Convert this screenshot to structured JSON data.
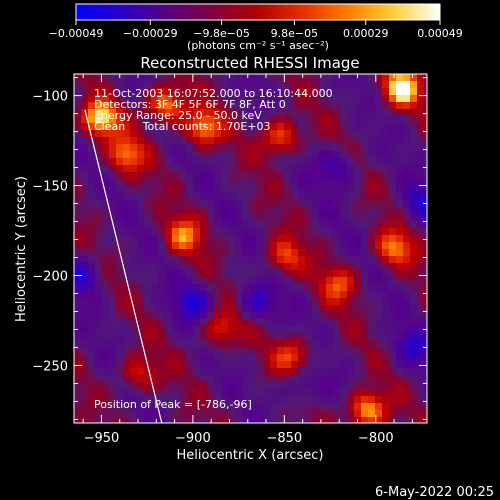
{
  "chart_data": {
    "type": "heatmap",
    "title": "Reconstructed RHESSI Image",
    "xlabel": "Heliocentric X (arcsec)",
    "ylabel": "Heliocentric Y (arcsec)",
    "xlim": [
      -965,
      -772
    ],
    "ylim": [
      -282,
      -88
    ],
    "xticks": [
      -950,
      -900,
      -850,
      -800
    ],
    "xtick_labels": [
      "−950",
      "−900",
      "−850",
      "−800"
    ],
    "yticks": [
      -100,
      -150,
      -200,
      -250
    ],
    "ytick_labels": [
      "−100",
      "−150",
      "−200",
      "−250"
    ],
    "colorbar": {
      "range": [
        -0.00049,
        0.00049
      ],
      "ticks": [
        -0.00049,
        -0.00029,
        -9.8e-05,
        9.8e-05,
        0.00029,
        0.00049
      ],
      "tick_labels": [
        "−0.00049",
        "−0.00029",
        "−9.8e−05",
        "9.8e−05",
        "0.00029",
        "0.00049"
      ],
      "label": "(photons cm⁻² s⁻¹ asec⁻²)",
      "colors": [
        "#0000ff",
        "#2a00c8",
        "#55007f",
        "#800040",
        "#b00000",
        "#e83000",
        "#ff8000",
        "#ffd040",
        "#ffffff"
      ]
    },
    "annotations": [
      "11-Oct-2003 16:07:52.000 to 16:10:44.000",
      "Detectors: 3F 4F 5F 6F 7F 8F, Att 0",
      "Energy Range: 25.0 - 50.0 keV",
      "Clean     Total counts: 1.70E+03",
      "Position of Peak = [-786,-96]"
    ],
    "limb_line": {
      "x": [
        -959,
        -917
      ],
      "y": [
        -108,
        -282
      ]
    },
    "peak": {
      "x": -786,
      "y": -96
    },
    "bright_regions": [
      {
        "x": -951,
        "y": -113,
        "level": 0.95
      },
      {
        "x": -915,
        "y": -105,
        "level": 0.9
      },
      {
        "x": -895,
        "y": -118,
        "level": 0.8
      },
      {
        "x": -852,
        "y": -123,
        "level": 0.75
      },
      {
        "x": -786,
        "y": -96,
        "level": 1.0
      },
      {
        "x": -805,
        "y": -275,
        "level": 0.95
      },
      {
        "x": -937,
        "y": -133,
        "level": 0.7
      },
      {
        "x": -905,
        "y": -178,
        "level": 0.65
      },
      {
        "x": -850,
        "y": -190,
        "level": 0.6
      },
      {
        "x": -820,
        "y": -205,
        "level": 0.55
      },
      {
        "x": -885,
        "y": -230,
        "level": 0.6
      },
      {
        "x": -845,
        "y": -245,
        "level": 0.6
      },
      {
        "x": -790,
        "y": -185,
        "level": 0.7
      },
      {
        "x": -930,
        "y": -255,
        "level": 0.55
      }
    ],
    "dark_regions": [
      {
        "x": -960,
        "y": -200,
        "level": -0.5
      },
      {
        "x": -900,
        "y": -215,
        "level": -0.55
      },
      {
        "x": -865,
        "y": -215,
        "level": -0.5
      },
      {
        "x": -820,
        "y": -140,
        "level": -0.45
      },
      {
        "x": -775,
        "y": -160,
        "level": -0.5
      },
      {
        "x": -780,
        "y": -240,
        "level": -0.45
      },
      {
        "x": -842,
        "y": -262,
        "level": -0.4
      }
    ]
  },
  "footer": {
    "date": "6-May-2022 00:25"
  }
}
